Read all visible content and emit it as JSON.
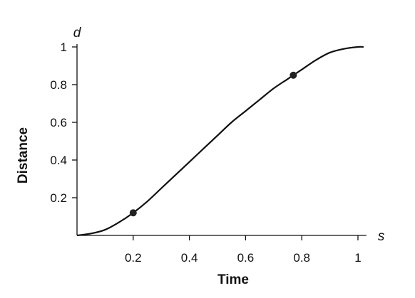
{
  "chart_data": {
    "type": "line",
    "xlabel": "Time",
    "ylabel": "Distance",
    "x_var": "s",
    "y_var": "d",
    "xlim": [
      0,
      1.02
    ],
    "ylim": [
      0,
      1
    ],
    "x_ticks": [
      0.2,
      0.4,
      0.6,
      0.8,
      1
    ],
    "x_tick_labels": [
      "0.2",
      "0.4",
      "0.6",
      "0.8",
      "1"
    ],
    "y_ticks": [
      0.2,
      0.4,
      0.6,
      0.8,
      1
    ],
    "y_tick_labels": [
      "0.2",
      "0.4",
      "0.6",
      "0.8",
      "1"
    ],
    "grid": false,
    "series": [
      {
        "x": [
          0,
          0.05,
          0.1,
          0.15,
          0.2,
          0.25,
          0.3,
          0.35,
          0.4,
          0.45,
          0.5,
          0.55,
          0.6,
          0.65,
          0.7,
          0.75,
          0.8,
          0.85,
          0.9,
          0.95,
          1,
          1.02
        ],
        "y": [
          0,
          0.01,
          0.03,
          0.07,
          0.12,
          0.18,
          0.25,
          0.32,
          0.39,
          0.46,
          0.53,
          0.6,
          0.66,
          0.72,
          0.78,
          0.83,
          0.88,
          0.93,
          0.97,
          0.99,
          1,
          1
        ]
      }
    ],
    "points": [
      {
        "x": 0.2,
        "y": 0.12
      },
      {
        "x": 0.77,
        "y": 0.85
      }
    ]
  }
}
